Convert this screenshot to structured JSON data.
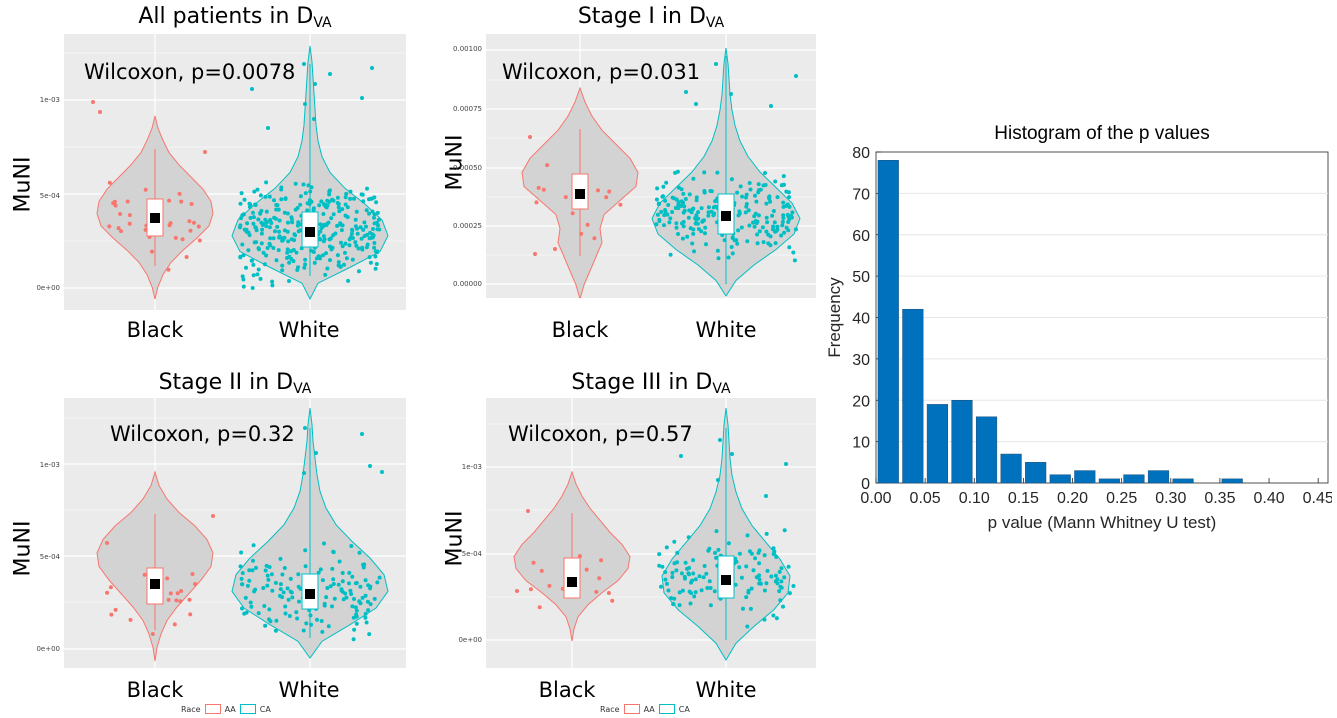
{
  "colors": {
    "black": "#f8766d",
    "white": "#00bfc4",
    "violin_fill": "#d3d3d3",
    "panel_bg": "#ebebeb",
    "grid": "#ffffff",
    "bar": "#0072bd"
  },
  "chart_data": [
    {
      "type": "violin",
      "title_main": "All patients in D",
      "title_sub": "VA",
      "annotation": "Wilcoxon, p=0.0078",
      "ylabel": "MuNI",
      "yticks": [
        "0e+00",
        "5e-04",
        "1e-03"
      ],
      "categories": [
        "Black",
        "White"
      ],
      "medians": [
        0.00037,
        0.0003
      ]
    },
    {
      "type": "violin",
      "title_main": "Stage I in D",
      "title_sub": "VA",
      "annotation": "Wilcoxon, p=0.031",
      "ylabel": "MuNI",
      "yticks": [
        "0.00000",
        "0.00025",
        "0.00050",
        "0.00075",
        "0.00100"
      ],
      "categories": [
        "Black",
        "White"
      ],
      "medians": [
        0.00038,
        0.00029
      ]
    },
    {
      "type": "violin",
      "title_main": "Stage II in D",
      "title_sub": "VA",
      "annotation": "Wilcoxon, p=0.32",
      "ylabel": "MuNI",
      "yticks": [
        "0e+00",
        "5e-04",
        "1e-03"
      ],
      "categories": [
        "Black",
        "White"
      ],
      "medians": [
        0.00036,
        0.0003
      ]
    },
    {
      "type": "violin",
      "title_main": "Stage III in D",
      "title_sub": "VA",
      "annotation": "Wilcoxon, p=0.57",
      "ylabel": "MuNI",
      "yticks": [
        "0e+00",
        "5e-04",
        "1e-03"
      ],
      "categories": [
        "Black",
        "White"
      ],
      "medians": [
        0.00034,
        0.00035
      ]
    },
    {
      "type": "bar",
      "title": "Histogram of the p values",
      "xlabel": "p value (Mann Whitney U test)",
      "ylabel": "Frequency",
      "x": [
        0.0125,
        0.0375,
        0.0625,
        0.0875,
        0.1125,
        0.1375,
        0.1625,
        0.1875,
        0.2125,
        0.2375,
        0.2625,
        0.2875,
        0.3125,
        0.3375,
        0.3625,
        0.3875,
        0.4125,
        0.4375
      ],
      "values": [
        78,
        42,
        19,
        20,
        16,
        7,
        5,
        2,
        3,
        1,
        2,
        3,
        1,
        0,
        1,
        0,
        0,
        0
      ],
      "xlim": [
        0,
        0.46
      ],
      "ylim": [
        0,
        80
      ],
      "xticks": [
        "0.00",
        "0.05",
        "0.10",
        "0.15",
        "0.20",
        "0.25",
        "0.30",
        "0.35",
        "0.40",
        "0.45"
      ],
      "yticks": [
        "0",
        "10",
        "20",
        "30",
        "40",
        "50",
        "60",
        "70",
        "80"
      ]
    }
  ],
  "legend": {
    "title": "Race",
    "items": [
      "AA",
      "CA"
    ]
  }
}
